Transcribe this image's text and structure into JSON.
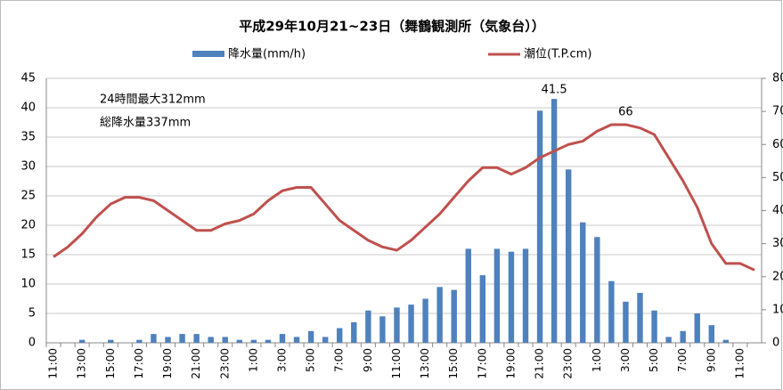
{
  "chart_data": {
    "type": "bar_line",
    "title": "平成29年10月21~23日（舞鶴観測所（気象台））",
    "categories": [
      "11:00",
      null,
      "13:00",
      null,
      "15:00",
      null,
      "17:00",
      null,
      "19:00",
      null,
      "21:00",
      null,
      "23:00",
      null,
      "1:00",
      null,
      "3:00",
      null,
      "5:00",
      null,
      "7:00",
      null,
      "9:00",
      null,
      "11:00",
      null,
      "13:00",
      null,
      "15:00",
      null,
      "17:00",
      null,
      "19:00",
      null,
      "21:00",
      null,
      "23:00",
      null,
      "1:00",
      null,
      "3:00",
      null,
      "5:00",
      null,
      "7:00",
      null,
      "9:00",
      null,
      "11:00",
      null
    ],
    "series": [
      {
        "name": "降水量(mm/h)",
        "type": "bar",
        "color": "#4f81bd",
        "values": [
          0,
          0,
          0.5,
          0,
          0.5,
          0,
          0.5,
          1.5,
          1,
          1.5,
          1.5,
          1,
          1,
          0.5,
          0.5,
          0.5,
          1.5,
          1,
          2,
          1,
          2.5,
          3.5,
          5.5,
          4.5,
          6,
          6.5,
          7.5,
          9.5,
          9,
          16,
          11.5,
          16,
          15.5,
          16,
          39.5,
          41.5,
          29.5,
          20.5,
          18,
          10.5,
          7,
          8.5,
          5.5,
          1,
          2,
          5,
          3,
          0.5,
          0,
          0
        ],
        "value_labels": [
          null,
          null,
          null,
          null,
          null,
          null,
          null,
          null,
          null,
          null,
          null,
          null,
          null,
          null,
          null,
          null,
          null,
          null,
          null,
          null,
          null,
          null,
          null,
          null,
          null,
          null,
          null,
          null,
          null,
          null,
          null,
          null,
          null,
          null,
          null,
          41.5,
          null,
          null,
          null,
          null,
          null,
          null,
          null,
          null,
          null,
          null,
          null,
          null,
          null,
          null
        ]
      },
      {
        "name": "潮位(T.P.cm)",
        "type": "line",
        "axis": "y2",
        "color": "#c0504d",
        "values": [
          26,
          29,
          33,
          38,
          42,
          44,
          44,
          43,
          40,
          37,
          34,
          34,
          36,
          37,
          39,
          43,
          46,
          47,
          47,
          42,
          37,
          34,
          31,
          29,
          28,
          31,
          35,
          39,
          44,
          49,
          53,
          53,
          51,
          53,
          56,
          58,
          60,
          61,
          64,
          66,
          66,
          65,
          63,
          56,
          49,
          41,
          30,
          24,
          24,
          22
        ],
        "value_labels": [
          null,
          null,
          null,
          null,
          null,
          null,
          null,
          null,
          null,
          null,
          null,
          null,
          null,
          null,
          null,
          null,
          null,
          null,
          null,
          null,
          null,
          null,
          null,
          null,
          null,
          null,
          null,
          null,
          null,
          null,
          null,
          null,
          null,
          null,
          null,
          null,
          null,
          null,
          null,
          null,
          66,
          null,
          null,
          null,
          null,
          null,
          null,
          null,
          null,
          null
        ]
      }
    ],
    "ylim": [
      0,
      45
    ],
    "yticks": [
      0,
      5,
      10,
      15,
      20,
      25,
      30,
      35,
      40,
      45
    ],
    "y2lim": [
      0,
      80
    ],
    "y2ticks": [
      0,
      10,
      20,
      30,
      40,
      50,
      60,
      70,
      80
    ],
    "grid": true,
    "legend": "top",
    "annotations": [
      "24時間最大312mm",
      "総降水量337mm"
    ]
  }
}
